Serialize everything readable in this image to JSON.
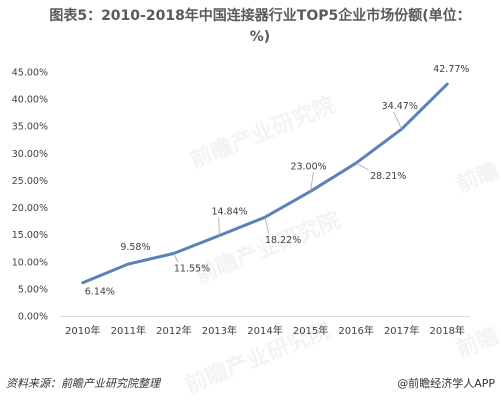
{
  "title": "图表5：2010-2018年中国连接器行业TOP5企业市场份额(单位：%)",
  "source_label": "资料来源：前瞻产业研究院整理",
  "brand_label": "@前瞻经济学人APP",
  "watermarks": [
    "前瞻产业研究院",
    "前瞻产业研究院",
    "前瞻产业研究院",
    "前瞻",
    "前瞻"
  ],
  "chart_data": {
    "type": "line",
    "title": "图表5：2010-2018年中国连接器行业TOP5企业市场份额(单位：%)",
    "x": [
      "2010年",
      "2011年",
      "2012年",
      "2013年",
      "2014年",
      "2015年",
      "2016年",
      "2017年",
      "2018年"
    ],
    "series": [
      {
        "values": [
          6.14,
          9.58,
          11.55,
          14.84,
          18.22,
          23.0,
          28.21,
          34.47,
          42.77
        ],
        "labels": [
          "6.14%",
          "9.58%",
          "11.55%",
          "14.84%",
          "18.22%",
          "23.00%",
          "28.21%",
          "34.47%",
          "42.77%"
        ],
        "color": "#5b82b8"
      }
    ],
    "yticks": [
      "0.00%",
      "5.00%",
      "10.00%",
      "15.00%",
      "20.00%",
      "25.00%",
      "30.00%",
      "35.00%",
      "40.00%",
      "45.00%"
    ],
    "ylim": [
      0,
      45
    ],
    "grid": false,
    "legend": "none"
  }
}
